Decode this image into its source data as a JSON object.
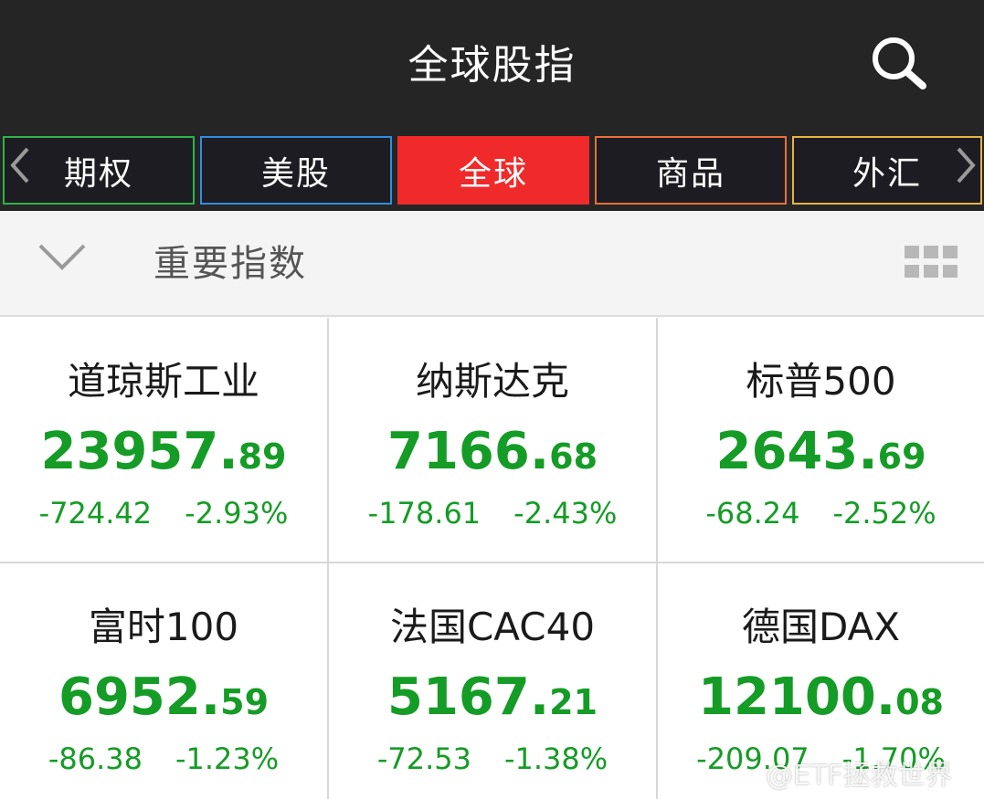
{
  "header": {
    "title": "全球股指"
  },
  "tabs": [
    {
      "label": "期权"
    },
    {
      "label": "美股"
    },
    {
      "label": "全球"
    },
    {
      "label": "商品"
    },
    {
      "label": "外汇"
    }
  ],
  "section": {
    "title": "重要指数"
  },
  "indices": [
    {
      "name": "道琼斯工业",
      "price_int": "23957.",
      "price_dec": "89",
      "change": "-724.42",
      "change_pct": "-2.93%"
    },
    {
      "name": "纳斯达克",
      "price_int": "7166.",
      "price_dec": "68",
      "change": "-178.61",
      "change_pct": "-2.43%"
    },
    {
      "name": "标普500",
      "price_int": "2643.",
      "price_dec": "69",
      "change": "-68.24",
      "change_pct": "-2.52%"
    },
    {
      "name": "富时100",
      "price_int": "6952.",
      "price_dec": "59",
      "change": "-86.38",
      "change_pct": "-1.23%"
    },
    {
      "name": "法国CAC40",
      "price_int": "5167.",
      "price_dec": "21",
      "change": "-72.53",
      "change_pct": "-1.38%"
    },
    {
      "name": "德国DAX",
      "price_int": "12100.",
      "price_dec": "08",
      "change": "-209.07",
      "change_pct": "-1.70%"
    }
  ],
  "watermark": {
    "text": "@ETF拯救世界"
  },
  "colors": {
    "header_bg": "#252525",
    "active_tab": "#f02a2a",
    "down_green": "#159c26"
  },
  "icons": [
    "search-icon",
    "chevron-left-icon",
    "chevron-right-icon",
    "chevron-down-icon",
    "grid-icon"
  ]
}
